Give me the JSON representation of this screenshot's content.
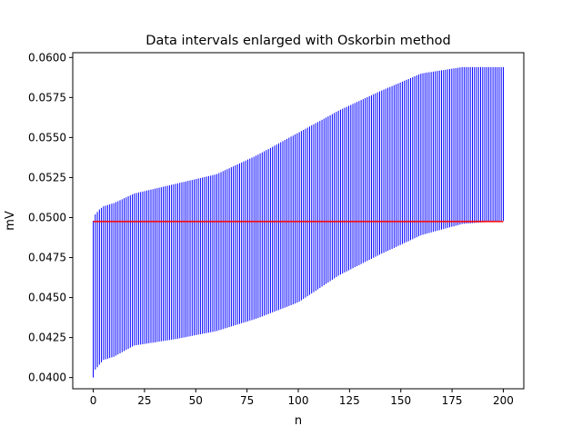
{
  "chart_data": {
    "type": "errorbar",
    "title": "Data intervals enlarged with Oskorbin method",
    "xlabel": "n",
    "ylabel": "mV",
    "xlim": [
      -10,
      210
    ],
    "ylim": [
      0.0393,
      0.0603
    ],
    "x_ticks": [
      0,
      25,
      50,
      75,
      100,
      125,
      150,
      175,
      200
    ],
    "y_ticks": [
      0.04,
      0.0425,
      0.045,
      0.0475,
      0.05,
      0.0525,
      0.055,
      0.0575,
      0.06
    ],
    "y_tick_format_decimals": 4,
    "grid": false,
    "legend": "none",
    "n_points": 200,
    "x_start": 0,
    "x_end": 200,
    "interval_profile": {
      "n": [
        0,
        1,
        3,
        5,
        10,
        20,
        40,
        60,
        80,
        100,
        120,
        140,
        160,
        180,
        200
      ],
      "lower": [
        0.04,
        0.0405,
        0.0408,
        0.0411,
        0.0413,
        0.042,
        0.0424,
        0.0429,
        0.0437,
        0.0447,
        0.0464,
        0.0477,
        0.0489,
        0.0496,
        0.0498
      ],
      "upper": [
        0.0498,
        0.0502,
        0.0505,
        0.0507,
        0.0509,
        0.0515,
        0.0521,
        0.0527,
        0.0539,
        0.0553,
        0.0567,
        0.0579,
        0.059,
        0.0594,
        0.0594
      ]
    },
    "reference_line": {
      "y": 0.04975,
      "x_range": [
        0,
        200
      ],
      "color": "#ff0000"
    },
    "colors": {
      "intervals": "#0000ff",
      "reference": "#ff0000",
      "axes": "#000000"
    }
  }
}
